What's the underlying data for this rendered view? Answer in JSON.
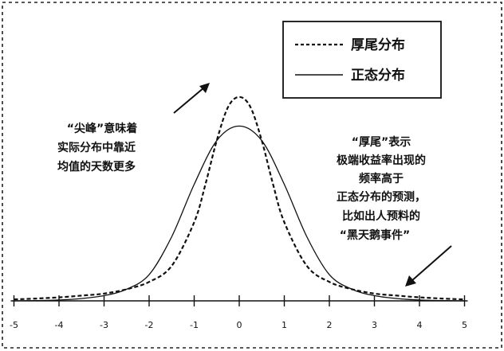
{
  "chart_data": {
    "type": "line",
    "title": "",
    "xlabel": "",
    "ylabel": "",
    "xlim": [
      -5,
      5
    ],
    "x_ticks": [
      "-5",
      "-4",
      "-3",
      "-2",
      "-1",
      "0",
      "1",
      "2",
      "3",
      "4",
      "5"
    ],
    "legend": {
      "placement": "top-right",
      "entries": [
        {
          "label": "厚尾分布",
          "style": "dashed"
        },
        {
          "label": "正态分布",
          "style": "solid"
        }
      ]
    },
    "series": [
      {
        "name": "厚尾分布",
        "style": "dashed",
        "x": [
          -5,
          -4.5,
          -4,
          -3.5,
          -3,
          -2.5,
          -2,
          -1.5,
          -1,
          -0.75,
          -0.5,
          -0.25,
          0,
          0.25,
          0.5,
          0.75,
          1,
          1.5,
          2,
          2.5,
          3,
          3.5,
          4,
          4.5,
          5
        ],
        "y": [
          0.005,
          0.008,
          0.012,
          0.018,
          0.025,
          0.04,
          0.065,
          0.12,
          0.27,
          0.4,
          0.55,
          0.665,
          0.7,
          0.665,
          0.55,
          0.4,
          0.27,
          0.12,
          0.065,
          0.04,
          0.025,
          0.018,
          0.012,
          0.008,
          0.005
        ]
      },
      {
        "name": "正态分布",
        "style": "solid",
        "x": [
          -5,
          -4.5,
          -4,
          -3.5,
          -3,
          -2.5,
          -2,
          -1.5,
          -1,
          -0.5,
          0,
          0.5,
          1,
          1.5,
          2,
          2.5,
          3,
          3.5,
          4,
          4.5,
          5
        ],
        "y": [
          0.0,
          0.001,
          0.003,
          0.008,
          0.018,
          0.04,
          0.09,
          0.22,
          0.4,
          0.55,
          0.6,
          0.55,
          0.4,
          0.22,
          0.09,
          0.04,
          0.018,
          0.008,
          0.003,
          0.001,
          0.0
        ]
      }
    ],
    "annotations": [
      {
        "lines": [
          "“尖峰”意味着",
          "实际分布中靠近",
          "均值的天数更多"
        ]
      },
      {
        "lines": [
          "“厚尾”表示",
          "极端收益率出现的",
          "频率高于",
          "正态分布的预测，",
          "比如出人预料的",
          "“黑天鹅事件”"
        ]
      }
    ]
  }
}
